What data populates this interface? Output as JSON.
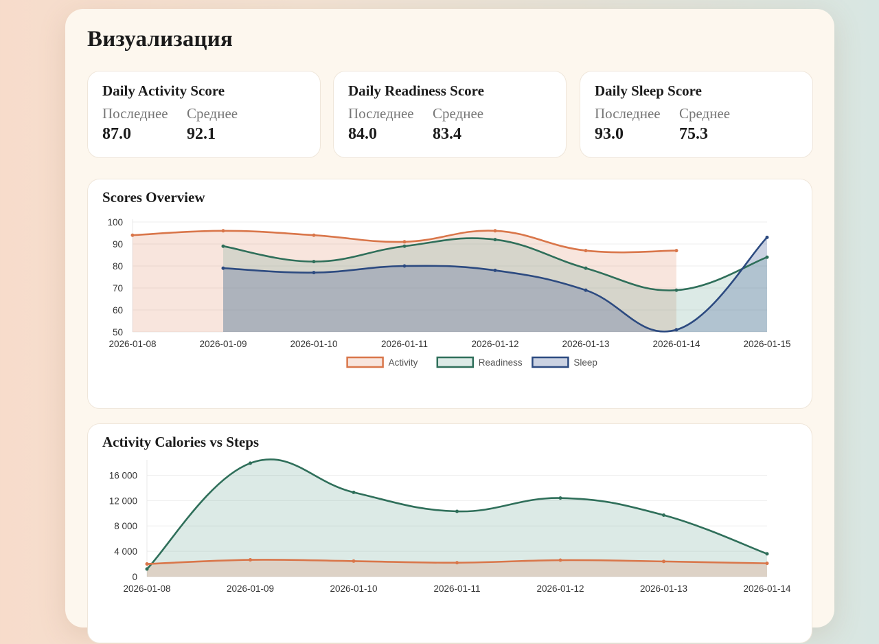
{
  "page": {
    "title": "Визуализация"
  },
  "stats": [
    {
      "title": "Daily Activity Score",
      "latest_label": "Последнее",
      "latest": "87.0",
      "avg_label": "Среднее",
      "avg": "92.1"
    },
    {
      "title": "Daily Readiness Score",
      "latest_label": "Последнее",
      "latest": "84.0",
      "avg_label": "Среднее",
      "avg": "83.4"
    },
    {
      "title": "Daily Sleep Score",
      "latest_label": "Последнее",
      "latest": "93.0",
      "avg_label": "Среднее",
      "avg": "75.3"
    }
  ],
  "chart_data": [
    {
      "type": "area",
      "title": "Scores Overview",
      "x": [
        "2026-01-08",
        "2026-01-09",
        "2026-01-10",
        "2026-01-11",
        "2026-01-12",
        "2026-01-13",
        "2026-01-14",
        "2026-01-15"
      ],
      "ylim": [
        50,
        100
      ],
      "yticks": [
        "50",
        "60",
        "70",
        "80",
        "90",
        "100"
      ],
      "legend_position": "bottom",
      "series": [
        {
          "name": "Activity",
          "color": "#d9764a",
          "fill": "rgba(224,138,102,0.22)",
          "values": [
            94,
            96,
            94,
            91,
            96,
            87,
            87,
            null
          ]
        },
        {
          "name": "Readiness",
          "color": "#2f6f5a",
          "fill": "rgba(95,160,140,0.22)",
          "values": [
            null,
            89,
            82,
            89,
            92,
            79,
            69,
            84
          ]
        },
        {
          "name": "Sleep",
          "color": "#2c4a80",
          "fill": "rgba(70,95,150,0.28)",
          "values": [
            null,
            79,
            77,
            80,
            78,
            69,
            51,
            93
          ]
        }
      ]
    },
    {
      "type": "area",
      "title": "Activity Calories vs Steps",
      "x": [
        "2026-01-08",
        "2026-01-09",
        "2026-01-10",
        "2026-01-11",
        "2026-01-12",
        "2026-01-13",
        "2026-01-14"
      ],
      "ylim": [
        0,
        18000
      ],
      "yticks": [
        "0",
        "4 000",
        "8 000",
        "12 000",
        "16 000"
      ],
      "series": [
        {
          "color": "#2f6f5a",
          "fill": "rgba(95,160,140,0.22)",
          "values": [
            1200,
            17900,
            13300,
            10300,
            12400,
            9700,
            3600
          ]
        },
        {
          "color": "#d9764a",
          "fill": "rgba(224,138,102,0.25)",
          "values": [
            2000,
            2650,
            2450,
            2200,
            2600,
            2400,
            2100
          ]
        }
      ]
    }
  ]
}
